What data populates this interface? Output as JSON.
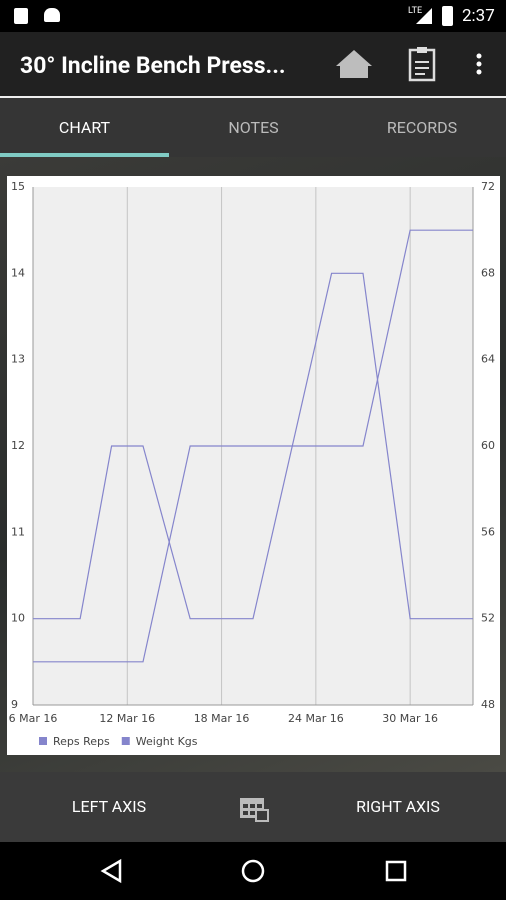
{
  "status_bar": {
    "network": "LTE",
    "time": "2:37"
  },
  "app_bar": {
    "title": "30° Incline Bench Press..."
  },
  "tabs": [
    "CHART",
    "NOTES",
    "RECORDS"
  ],
  "chart_data": {
    "type": "line",
    "x": [
      "2016-03-06",
      "2016-03-09",
      "2016-03-11",
      "2016-03-13",
      "2016-03-16",
      "2016-03-20",
      "2016-03-25",
      "2016-03-27",
      "2016-03-30",
      "2016-04-03"
    ],
    "series": [
      {
        "name": "Reps Reps",
        "color": "#8585cc",
        "values": [
          10,
          10,
          12,
          12,
          10,
          10,
          14,
          14,
          10,
          10
        ]
      },
      {
        "name": "Weight Kgs",
        "color": "#8585cc",
        "axis": "y2",
        "values": [
          50,
          50,
          50,
          50,
          60,
          60,
          60,
          60,
          70,
          70
        ]
      }
    ],
    "xlim": [
      "2016-03-06",
      "2016-04-03"
    ],
    "xticks": [
      {
        "value": "2016-03-06",
        "label": "6 Mar 16"
      },
      {
        "value": "2016-03-12",
        "label": "12 Mar 16"
      },
      {
        "value": "2016-03-18",
        "label": "18 Mar 16"
      },
      {
        "value": "2016-03-24",
        "label": "24 Mar 16"
      },
      {
        "value": "2016-03-30",
        "label": "30 Mar 16"
      }
    ],
    "ylim": [
      9,
      15
    ],
    "yticks": [
      9,
      10,
      11,
      12,
      13,
      14,
      15
    ],
    "y2lim": [
      48,
      72
    ],
    "y2ticks": [
      48,
      52,
      56,
      60,
      64,
      68,
      72
    ],
    "grid": "x",
    "legend": "bottom-left"
  },
  "bottom_bar": {
    "left": "LEFT AXIS",
    "right": "RIGHT AXIS"
  }
}
